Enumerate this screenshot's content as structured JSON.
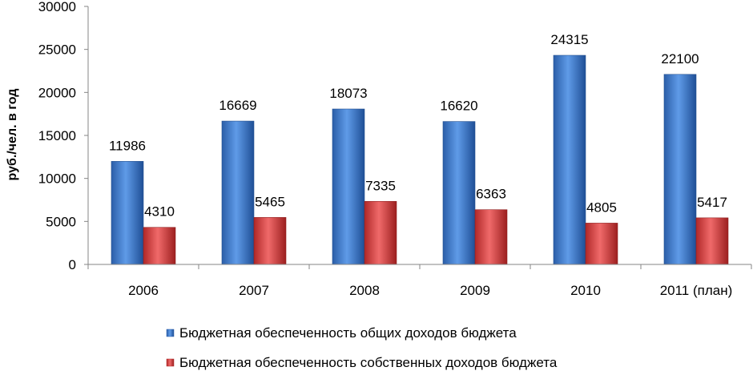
{
  "chart_data": {
    "type": "bar",
    "ylabel": "руб./чел. в год",
    "ylim": [
      0,
      30000
    ],
    "yticks": [
      "0",
      "5000",
      "10000",
      "15000",
      "20000",
      "25000",
      "30000"
    ],
    "categories": [
      "2006",
      "2007",
      "2008",
      "2009",
      "2010",
      "2011 (план)"
    ],
    "series": [
      {
        "name": "Бюджетная обеспеченность общих доходов бюджета",
        "color": "#3a73c9",
        "values": [
          11986,
          16669,
          18073,
          16620,
          24315,
          22100
        ],
        "labels": [
          "11986",
          "16669",
          "18073",
          "16620",
          "24315",
          "22100"
        ]
      },
      {
        "name": "Бюджетная обеспеченность собственных доходов бюджета",
        "color": "#d43c3c",
        "values": [
          4310,
          5465,
          7335,
          6363,
          4805,
          5417
        ],
        "labels": [
          "4310",
          "5465",
          "7335",
          "6363",
          "4805",
          "5417"
        ]
      }
    ],
    "legend": "bottom",
    "grid": false
  }
}
